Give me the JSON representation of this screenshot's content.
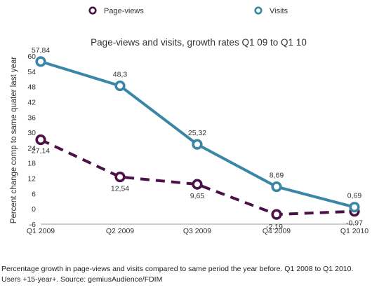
{
  "colors": {
    "page_views": "#4b1148",
    "visits": "#3a86a6",
    "axis": "#999999",
    "text": "#333333"
  },
  "legend": [
    {
      "label": "Page-views",
      "series": "page_views"
    },
    {
      "label": "Visits",
      "series": "visits"
    }
  ],
  "caption": "Percentage growth in page-views and visits compared to same period the year before. Q1 2008 to Q1 2010. Users +15-year+. Source: gemiusAudience/FDIM",
  "chart_data": {
    "type": "line",
    "title": "Page-views and visits, growth rates Q1 09 to Q1 10",
    "xlabel": "",
    "ylabel": "Percent change comp to same quater last year",
    "categories": [
      "Q1 2009",
      "Q2 2009",
      "Q3 2009",
      "Q4 2009",
      "Q1 2010"
    ],
    "ylim": [
      -6,
      60
    ],
    "yticks": [
      -6,
      0,
      6,
      12,
      18,
      24,
      30,
      36,
      42,
      48,
      54,
      60
    ],
    "grid": false,
    "legend_position": "top",
    "series": [
      {
        "name": "Page-views",
        "key": "page_views",
        "line_style": "dashed",
        "values": [
          27.14,
          12.54,
          9.65,
          -2.19,
          -0.97
        ],
        "labels": [
          "27,14",
          "12,54",
          "9,65",
          "-2,19",
          "-0,97"
        ]
      },
      {
        "name": "Visits",
        "key": "visits",
        "line_style": "solid",
        "values": [
          57.84,
          48.3,
          25.32,
          8.69,
          0.69
        ],
        "labels": [
          "57,84",
          "48,3",
          "25,32",
          "8,69",
          "0,69"
        ]
      }
    ]
  }
}
